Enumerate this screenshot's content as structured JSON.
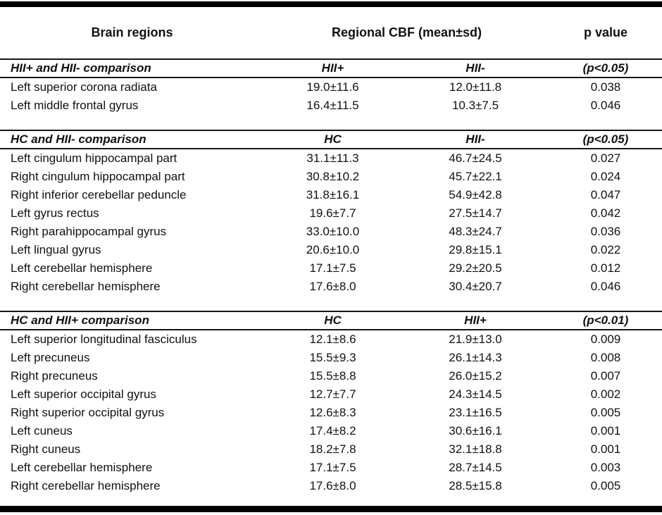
{
  "table": {
    "title_row": {
      "brain_regions": "Brain regions",
      "regional_cbf": "Regional CBF (mean±sd)",
      "p_value": "p value"
    },
    "sections": [
      {
        "header": {
          "label": "HII+ and HII- comparison",
          "col2": "HII+",
          "col3": "HII-",
          "col4": "(p<0.05)"
        },
        "rows": [
          {
            "region": "Left superior corona radiata",
            "v1": "19.0±11.6",
            "v2": "12.0±11.8",
            "p": "0.038"
          },
          {
            "region": "Left middle frontal gyrus",
            "v1": "16.4±11.5",
            "v2": "10.3±7.5",
            "p": "0.046"
          }
        ]
      },
      {
        "header": {
          "label": "HC and HII- comparison",
          "col2": "HC",
          "col3": "HII-",
          "col4": "(p<0.05)"
        },
        "rows": [
          {
            "region": "Left cingulum hippocampal part",
            "v1": "31.1±11.3",
            "v2": "46.7±24.5",
            "p": "0.027"
          },
          {
            "region": "Right cingulum hippocampal part",
            "v1": "30.8±10.2",
            "v2": "45.7±22.1",
            "p": "0.024"
          },
          {
            "region": "Right inferior cerebellar peduncle",
            "v1": "31.8±16.1",
            "v2": "54.9±42.8",
            "p": "0.047"
          },
          {
            "region": "Left gyrus rectus",
            "v1": "19.6±7.7",
            "v2": "27.5±14.7",
            "p": "0.042"
          },
          {
            "region": "Right parahippocampal gyrus",
            "v1": "33.0±10.0",
            "v2": "48.3±24.7",
            "p": "0.036"
          },
          {
            "region": "Left lingual gyrus",
            "v1": "20.6±10.0",
            "v2": "29.8±15.1",
            "p": "0.022"
          },
          {
            "region": "Left cerebellar hemisphere",
            "v1": "17.1±7.5",
            "v2": "29.2±20.5",
            "p": "0.012"
          },
          {
            "region": "Right cerebellar hemisphere",
            "v1": "17.6±8.0",
            "v2": "30.4±20.7",
            "p": "0.046"
          }
        ]
      },
      {
        "header": {
          "label": "HC and HII+ comparison",
          "col2": "HC",
          "col3": "HII+",
          "col4": "(p<0.01)"
        },
        "rows": [
          {
            "region": "Left superior longitudinal fasciculus",
            "v1": "12.1±8.6",
            "v2": "21.9±13.0",
            "p": "0.009"
          },
          {
            "region": "Left precuneus",
            "v1": "15.5±9.3",
            "v2": "26.1±14.3",
            "p": "0.008"
          },
          {
            "region": "Right precuneus",
            "v1": "15.5±8.8",
            "v2": "26.0±15.2",
            "p": "0.007"
          },
          {
            "region": "Left superior occipital gyrus",
            "v1": "12.7±7.7",
            "v2": "24.3±14.5",
            "p": "0.002"
          },
          {
            "region": "Right superior occipital gyrus",
            "v1": "12.6±8.3",
            "v2": "23.1±16.5",
            "p": "0.005"
          },
          {
            "region": "Left cuneus",
            "v1": "17.4±8.2",
            "v2": "30.6±16.1",
            "p": "0.001"
          },
          {
            "region": "Right cuneus",
            "v1": "18.2±7.8",
            "v2": "32.1±18.8",
            "p": "0.001"
          },
          {
            "region": "Left cerebellar hemisphere",
            "v1": "17.1±7.5",
            "v2": "28.7±14.5",
            "p": "0.003"
          },
          {
            "region": "Right cerebellar hemisphere",
            "v1": "17.6±8.0",
            "v2": "28.5±15.8",
            "p": "0.005"
          }
        ]
      }
    ],
    "colors": {
      "text": "#111111",
      "rule": "#000000",
      "background": "#ffffff"
    }
  }
}
